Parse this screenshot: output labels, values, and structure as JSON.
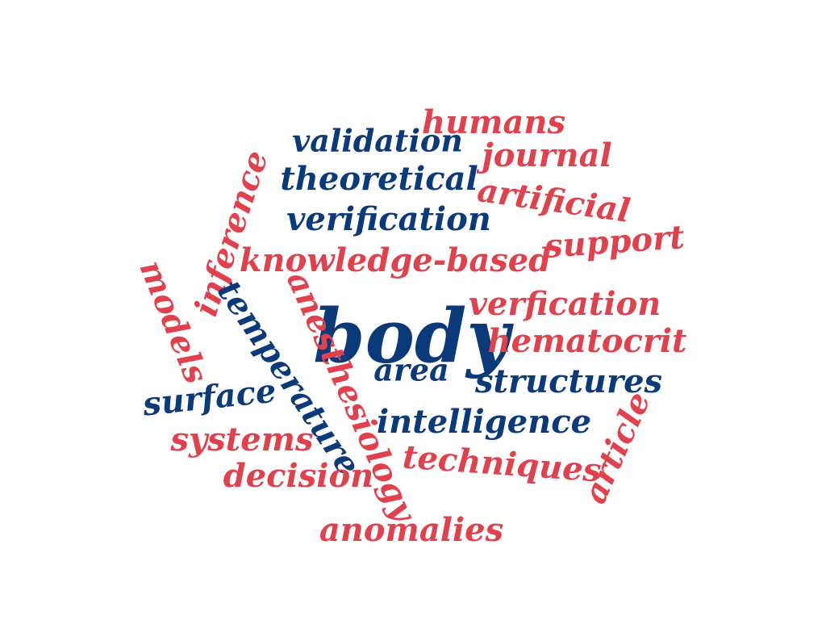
{
  "colors": {
    "navy": "#0b3a7a",
    "red": "#e0414c",
    "background": "#ffffff"
  },
  "words": [
    {
      "id": "body",
      "text": "body",
      "color": "navy"
    },
    {
      "id": "humans",
      "text": "humans",
      "color": "red"
    },
    {
      "id": "validation",
      "text": "validation",
      "color": "navy"
    },
    {
      "id": "journal",
      "text": "journal",
      "color": "red"
    },
    {
      "id": "theoretical",
      "text": "theoretical",
      "color": "navy"
    },
    {
      "id": "artificial",
      "text": "artificial",
      "color": "red"
    },
    {
      "id": "inference",
      "text": "inference",
      "color": "red"
    },
    {
      "id": "verification",
      "text": "verification",
      "color": "navy"
    },
    {
      "id": "support",
      "text": "support",
      "color": "red"
    },
    {
      "id": "knowledge-based",
      "text": "knowledge-based",
      "color": "red"
    },
    {
      "id": "models",
      "text": "models",
      "color": "red"
    },
    {
      "id": "temperature",
      "text": "temperature",
      "color": "navy"
    },
    {
      "id": "anesthesiology",
      "text": "anesthesiology",
      "color": "red"
    },
    {
      "id": "verfication",
      "text": "verfication",
      "color": "red"
    },
    {
      "id": "hematocrit",
      "text": "hematocrit",
      "color": "red"
    },
    {
      "id": "area",
      "text": "area",
      "color": "navy"
    },
    {
      "id": "structures",
      "text": "structures",
      "color": "navy"
    },
    {
      "id": "surface",
      "text": "surface",
      "color": "navy"
    },
    {
      "id": "article",
      "text": "article",
      "color": "red"
    },
    {
      "id": "intelligence",
      "text": "intelligence",
      "color": "navy"
    },
    {
      "id": "systems",
      "text": "systems",
      "color": "red"
    },
    {
      "id": "techniques",
      "text": "techniques",
      "color": "red"
    },
    {
      "id": "decision",
      "text": "decision",
      "color": "red"
    },
    {
      "id": "anomalies",
      "text": "anomalies",
      "color": "red"
    }
  ]
}
